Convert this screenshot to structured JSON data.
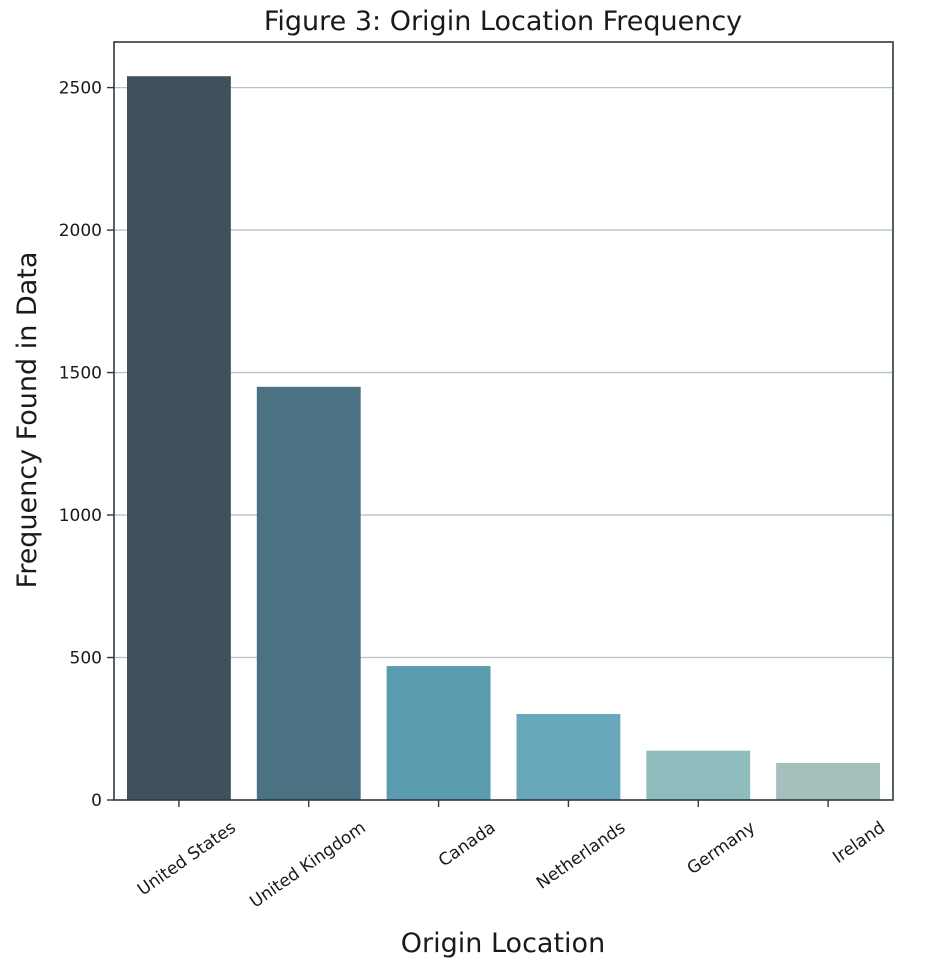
{
  "chart_data": {
    "type": "bar",
    "title": "Figure 3: Origin Location Frequency",
    "xlabel": "Origin Location",
    "ylabel": "Frequency Found in Data",
    "categories": [
      "United States",
      "United Kingdom",
      "Canada",
      "Netherlands",
      "Germany",
      "Ireland"
    ],
    "values": [
      2540,
      1450,
      470,
      302,
      173,
      130
    ],
    "ylim": [
      0,
      2660
    ],
    "yticks": [
      0,
      500,
      1000,
      1500,
      2000,
      2500
    ],
    "grid": "horizontal",
    "colors": [
      "#3f515a",
      "#4a7282",
      "#5a9bb0",
      "#69a8ba",
      "#8fbcbd",
      "#a5c0bc"
    ]
  }
}
